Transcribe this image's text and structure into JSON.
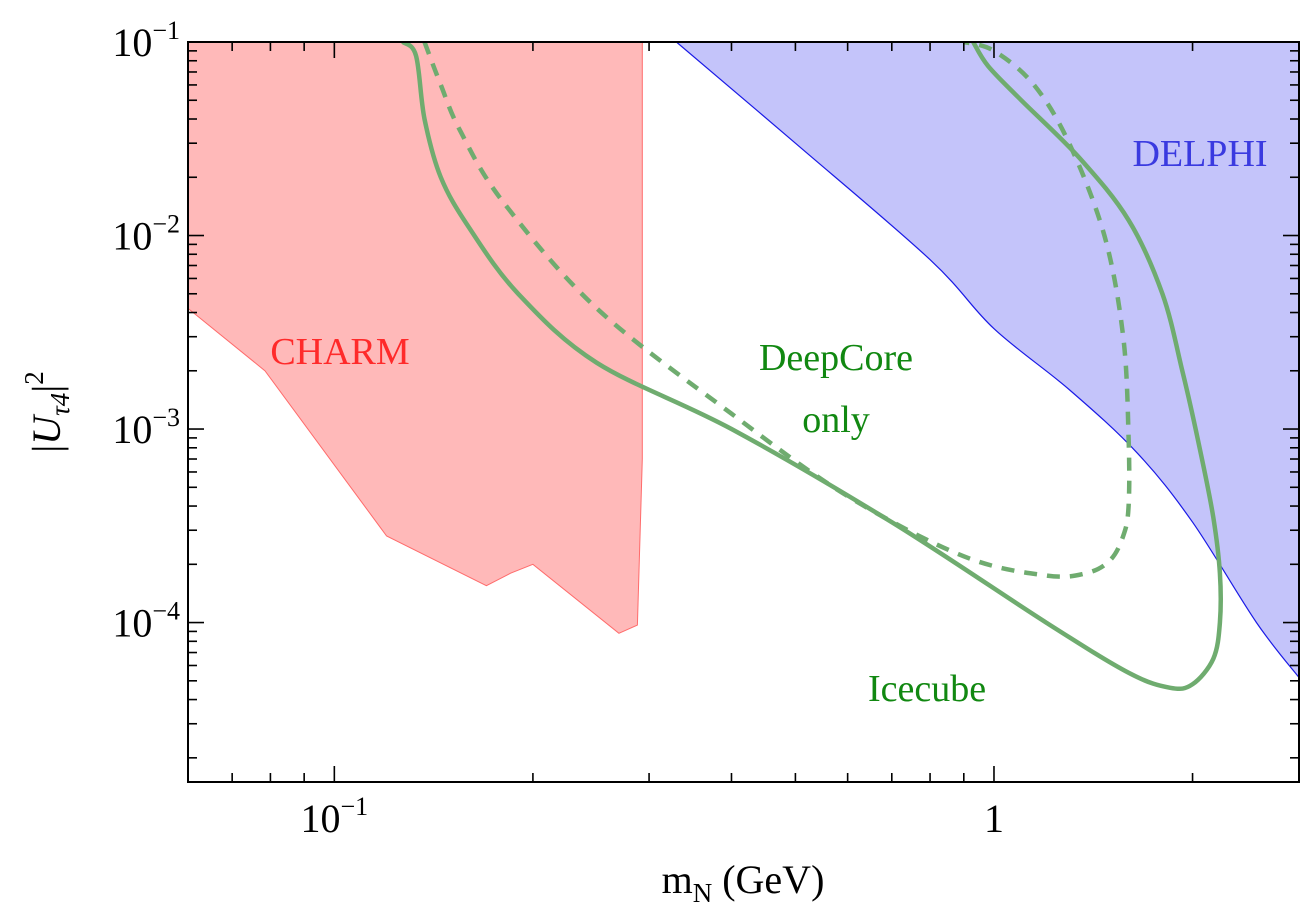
{
  "chart_data": {
    "type": "area",
    "xlabel": "m",
    "xlabel_sub": "N",
    "xlabel_unit": " (GeV)",
    "ylabel_base": "U",
    "ylabel_sub": "τ4",
    "ylabel_sup": "2",
    "x_scale": "log",
    "y_scale": "log",
    "xlim": [
      0.06,
      2.9
    ],
    "ylim": [
      1.5e-05,
      0.1
    ],
    "x_ticks": [
      {
        "value": 0.1,
        "base": "10",
        "exp": "−1"
      },
      {
        "value": 1,
        "base": "1",
        "exp": ""
      }
    ],
    "y_ticks": [
      {
        "value": 0.1,
        "base": "10",
        "exp": "−1"
      },
      {
        "value": 0.01,
        "base": "10",
        "exp": "−2"
      },
      {
        "value": 0.001,
        "base": "10",
        "exp": "−3"
      },
      {
        "value": 0.0001,
        "base": "10",
        "exp": "−4"
      }
    ],
    "colors": {
      "charm_fill": "#ffb9b9",
      "charm_edge": "#ff6b6b",
      "delphi_fill": "#c4c4fa",
      "delphi_edge": "#1a1ae6",
      "icecube": "#6fac6f",
      "label_red": "#ff2a2a",
      "label_green": "#118811",
      "label_blue": "#3a3ae0"
    },
    "regions": [
      {
        "name": "CHARM",
        "x": [
          0.06,
          0.06,
          0.0785,
          0.12,
          0.17,
          0.185,
          0.2,
          0.27,
          0.288,
          0.293,
          0.293
        ],
        "y": [
          0.0042,
          0.0042,
          0.002,
          0.00028,
          0.000155,
          0.00018,
          0.0002,
          8.8e-05,
          9.7e-05,
          0.0007,
          0.1
        ]
      },
      {
        "name": "DELPHI",
        "x": [
          0.33,
          0.5,
          0.8,
          1.0,
          1.3,
          1.65,
          2.0,
          2.5,
          2.9
        ],
        "y": [
          0.1,
          0.03,
          0.0075,
          0.0033,
          0.0016,
          0.00075,
          0.00033,
          0.0001,
          5.2e-05
        ]
      }
    ],
    "series": [
      {
        "name": "Icecube",
        "style": "solid",
        "x": [
          0.127,
          0.133,
          0.137,
          0.145,
          0.16,
          0.19,
          0.25,
          0.4,
          0.7,
          1.2,
          1.6,
          1.85,
          2.0,
          2.15,
          2.2,
          2.2,
          2.15,
          2.05,
          1.93,
          1.8,
          1.6,
          1.35,
          1.1,
          0.98,
          0.93
        ],
        "y": [
          0.1,
          0.085,
          0.04,
          0.02,
          0.011,
          0.005,
          0.0022,
          0.001,
          0.00033,
          0.0001,
          5.5e-05,
          4.6e-05,
          4.8e-05,
          6.5e-05,
          0.0001,
          0.00018,
          0.00035,
          0.0008,
          0.002,
          0.005,
          0.012,
          0.025,
          0.05,
          0.075,
          0.1
        ]
      },
      {
        "name": "DeepCore only",
        "style": "dashed",
        "x": [
          0.137,
          0.145,
          0.155,
          0.18,
          0.25,
          0.4,
          0.6,
          0.9,
          1.2,
          1.38,
          1.5,
          1.57,
          1.6,
          1.6,
          1.57,
          1.47,
          1.3,
          1.15,
          1.0,
          0.9
        ],
        "y": [
          0.1,
          0.06,
          0.035,
          0.015,
          0.0042,
          0.0012,
          0.00045,
          0.00022,
          0.000175,
          0.00018,
          0.00021,
          0.00028,
          0.0004,
          0.0009,
          0.003,
          0.01,
          0.03,
          0.06,
          0.09,
          0.1
        ]
      }
    ],
    "annotations": [
      {
        "text": "CHARM",
        "color_key": "label_red"
      },
      {
        "text": "DELPHI",
        "color_key": "label_blue"
      },
      {
        "text": "DeepCore",
        "color_key": "label_green"
      },
      {
        "text": "only",
        "color_key": "label_green"
      },
      {
        "text": "Icecube",
        "color_key": "label_green"
      }
    ]
  }
}
